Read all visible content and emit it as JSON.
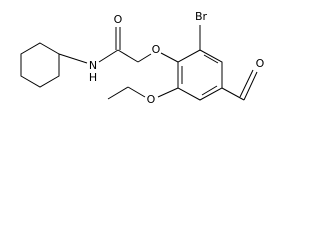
{
  "atoms": {
    "carbonyl_oxygen": "O",
    "amide_nitrogen": "N",
    "amide_hydrogen": "H",
    "ether_oxygen": "O",
    "bromine": "Br",
    "ethoxy_oxygen": "O",
    "aldehyde_oxygen": "O"
  }
}
